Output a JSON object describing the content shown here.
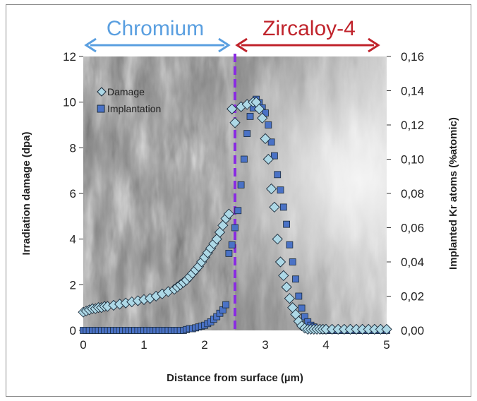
{
  "chart_data": {
    "type": "scatter",
    "title": "",
    "regions": [
      {
        "name": "Chromium",
        "color": "#5a9fe0",
        "x_range": [
          0,
          2.5
        ]
      },
      {
        "name": "Zircaloy-4",
        "color": "#c0232b",
        "x_range": [
          2.5,
          5
        ]
      }
    ],
    "xlabel": "Distance from surface (µm)",
    "ylabel_left": "Irradiation damage (dpa)",
    "ylabel_right": "Implanted Kr atoms (%atomic)",
    "xlim": [
      0,
      5
    ],
    "ylim_left": [
      0,
      12
    ],
    "ylim_right": [
      0,
      0.16
    ],
    "x_ticks": [
      "0",
      "1",
      "2",
      "3",
      "4",
      "5"
    ],
    "y_left_ticks": [
      "0",
      "2",
      "4",
      "6",
      "8",
      "10",
      "12"
    ],
    "y_right_ticks": [
      "0,00",
      "0,02",
      "0,04",
      "0,06",
      "0,08",
      "0,10",
      "0,12",
      "0,14",
      "0,16"
    ],
    "interface_x": 2.5,
    "interface_color": "#8a2be2",
    "legend_position": "top-left",
    "series": [
      {
        "name": "Damage",
        "axis": "left",
        "marker": "diamond",
        "color": "#add8e6",
        "x": [
          0.0,
          0.05,
          0.1,
          0.15,
          0.2,
          0.25,
          0.3,
          0.35,
          0.4,
          0.5,
          0.6,
          0.7,
          0.8,
          0.9,
          1.0,
          1.1,
          1.2,
          1.3,
          1.4,
          1.5,
          1.55,
          1.6,
          1.65,
          1.7,
          1.75,
          1.8,
          1.85,
          1.9,
          1.95,
          2.0,
          2.05,
          2.1,
          2.15,
          2.2,
          2.25,
          2.3,
          2.35,
          2.4,
          2.45,
          2.5,
          2.6,
          2.7,
          2.8,
          2.85,
          2.9,
          2.95,
          3.0,
          3.05,
          3.1,
          3.15,
          3.2,
          3.25,
          3.3,
          3.35,
          3.4,
          3.45,
          3.5,
          3.55,
          3.6,
          3.65,
          3.7,
          3.75,
          3.8,
          3.85,
          3.9,
          3.95,
          4.0,
          4.1,
          4.2,
          4.3,
          4.4,
          4.5,
          4.6,
          4.7,
          4.8,
          4.9,
          5.0
        ],
        "values": [
          0.8,
          0.85,
          0.9,
          0.95,
          0.95,
          1.0,
          1.0,
          1.05,
          1.05,
          1.1,
          1.15,
          1.2,
          1.25,
          1.3,
          1.35,
          1.4,
          1.5,
          1.6,
          1.7,
          1.8,
          1.9,
          2.0,
          2.1,
          2.2,
          2.35,
          2.5,
          2.65,
          2.8,
          3.0,
          3.2,
          3.4,
          3.6,
          3.8,
          4.0,
          4.3,
          4.6,
          4.9,
          5.1,
          9.7,
          9.1,
          9.8,
          9.9,
          10.0,
          10.0,
          9.7,
          9.3,
          8.4,
          7.5,
          6.2,
          5.4,
          4.0,
          3.0,
          2.4,
          1.9,
          1.4,
          1.0,
          0.7,
          0.4,
          0.2,
          0.1,
          0.05,
          0.05,
          0.05,
          0.05,
          0.05,
          0.05,
          0.05,
          0.05,
          0.05,
          0.05,
          0.05,
          0.05,
          0.05,
          0.05,
          0.05,
          0.05,
          0.05
        ]
      },
      {
        "name": "Implantation",
        "axis": "right",
        "marker": "square",
        "color": "#4a72c6",
        "x": [
          0.0,
          0.05,
          0.1,
          0.15,
          0.2,
          0.25,
          0.3,
          0.35,
          0.4,
          0.45,
          0.5,
          0.55,
          0.6,
          0.65,
          0.7,
          0.75,
          0.8,
          0.85,
          0.9,
          0.95,
          1.0,
          1.05,
          1.1,
          1.15,
          1.2,
          1.25,
          1.3,
          1.35,
          1.4,
          1.45,
          1.5,
          1.55,
          1.6,
          1.65,
          1.7,
          1.75,
          1.8,
          1.85,
          1.9,
          1.95,
          2.0,
          2.05,
          2.1,
          2.15,
          2.2,
          2.25,
          2.3,
          2.35,
          2.4,
          2.45,
          2.5,
          2.55,
          2.6,
          2.65,
          2.7,
          2.75,
          2.8,
          2.85,
          2.9,
          2.95,
          3.0,
          3.05,
          3.1,
          3.15,
          3.2,
          3.25,
          3.3,
          3.35,
          3.4,
          3.45,
          3.5,
          3.55,
          3.6,
          3.65,
          3.7,
          3.75,
          3.8,
          3.85,
          3.9,
          3.95,
          4.0,
          4.05,
          4.1,
          4.15,
          4.2,
          4.25,
          4.3,
          4.35,
          4.4,
          4.45,
          4.5,
          4.55,
          4.6,
          4.65,
          4.7,
          4.75,
          4.8,
          4.85,
          4.9,
          4.95,
          5.0
        ],
        "values": [
          0.0,
          0.0,
          0.0,
          0.0,
          0.0,
          0.0,
          0.0,
          0.0,
          0.0,
          0.0,
          0.0,
          0.0,
          0.0,
          0.0,
          0.0,
          0.0,
          0.0,
          0.0,
          0.0,
          0.0,
          0.0,
          0.0,
          0.0,
          0.0,
          0.0,
          0.0,
          0.0,
          0.0,
          0.0,
          0.0,
          0.0,
          0.0,
          0.0,
          0.0,
          0.0005,
          0.001,
          0.001,
          0.0015,
          0.002,
          0.0025,
          0.003,
          0.004,
          0.005,
          0.0065,
          0.008,
          0.01,
          0.012,
          0.015,
          0.045,
          0.05,
          0.06,
          0.07,
          0.085,
          0.1,
          0.115,
          0.125,
          0.13,
          0.135,
          0.133,
          0.13,
          0.127,
          0.12,
          0.11,
          0.102,
          0.091,
          0.082,
          0.072,
          0.062,
          0.05,
          0.04,
          0.03,
          0.02,
          0.013,
          0.008,
          0.005,
          0.003,
          0.002,
          0.001,
          0.0005,
          0.0,
          0.0,
          0.0,
          0.0,
          0.0,
          0.0,
          0.0,
          0.0,
          0.0,
          0.0,
          0.0,
          0.0,
          0.0,
          0.0,
          0.0,
          0.0,
          0.0,
          0.0,
          0.0,
          0.0,
          0.0,
          0.0
        ]
      }
    ]
  }
}
